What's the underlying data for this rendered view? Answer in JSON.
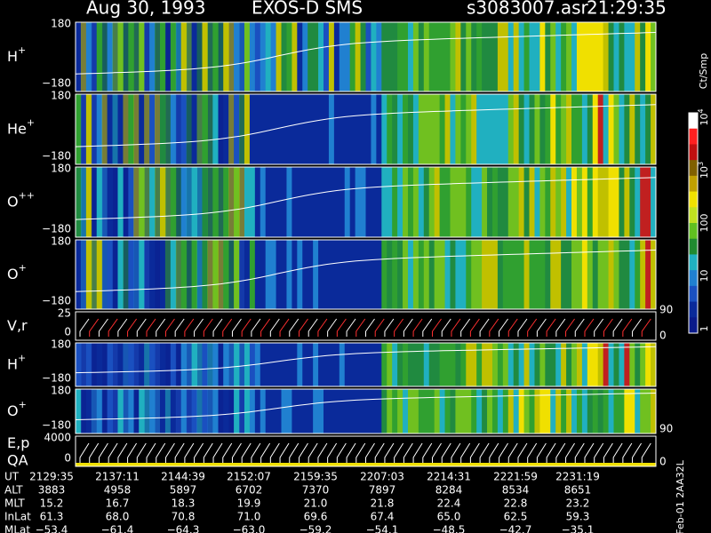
{
  "header": {
    "date": "Aug 30, 1993",
    "instrument": "EXOS-D SMS",
    "file": "s3083007.asr",
    "time": "21:29:35"
  },
  "panels": [
    {
      "name": "H",
      "charge": "+",
      "top_tick": "180",
      "bottom_tick": "−180"
    },
    {
      "name": "He",
      "charge": "+",
      "top_tick": "180",
      "bottom_tick": "−180"
    },
    {
      "name": "O",
      "charge": "++",
      "top_tick": "180",
      "bottom_tick": "−180"
    },
    {
      "name": "O",
      "charge": "+",
      "top_tick": "180",
      "bottom_tick": "−180"
    },
    {
      "name": "V,r",
      "top_tick": "25",
      "bottom_tick": "0",
      "right_top": "90",
      "right_bottom": "0"
    },
    {
      "name": "H",
      "charge": "+",
      "top_tick": "180",
      "bottom_tick": "−180"
    },
    {
      "name": "O",
      "charge": "+",
      "top_tick": "180",
      "bottom_tick": "−180",
      "right_bottom": "90"
    },
    {
      "name": "E,p",
      "name2": "QA",
      "top_tick": "4000",
      "bottom_tick": "0",
      "right_bottom": "0"
    }
  ],
  "colorbar": {
    "unit": "Ct/Smp",
    "labels": [
      {
        "base": "10",
        "exp": "4"
      },
      {
        "base": "10",
        "exp": "3"
      },
      {
        "base": "100"
      },
      {
        "base": "10"
      },
      {
        "base": "1"
      }
    ]
  },
  "table": {
    "row_labels": [
      "UT",
      "ALT",
      "MLT",
      "InLat",
      "MLat"
    ],
    "rows": [
      [
        "2129:35",
        "2137:11",
        "2144:39",
        "2152:07",
        "2159:35",
        "2207:03",
        "2214:31",
        "2221:59",
        "2231:19"
      ],
      [
        "3883",
        "4958",
        "5897",
        "6702",
        "7370",
        "7897",
        "8284",
        "8534",
        "8651"
      ],
      [
        "15.2",
        "16.7",
        "18.3",
        "19.9",
        "21.0",
        "21.8",
        "22.4",
        "22.8",
        "23.2"
      ],
      [
        "61.3",
        "68.0",
        "70.8",
        "71.0",
        "69.6",
        "67.4",
        "65.0",
        "62.5",
        "59.3"
      ],
      [
        "−53.4",
        "−61.4",
        "−64.3",
        "−63.0",
        "−59.2",
        "−54.1",
        "−48.5",
        "−42.7",
        "−35.1"
      ]
    ]
  },
  "footer": "Feb-01 2AA32L"
}
